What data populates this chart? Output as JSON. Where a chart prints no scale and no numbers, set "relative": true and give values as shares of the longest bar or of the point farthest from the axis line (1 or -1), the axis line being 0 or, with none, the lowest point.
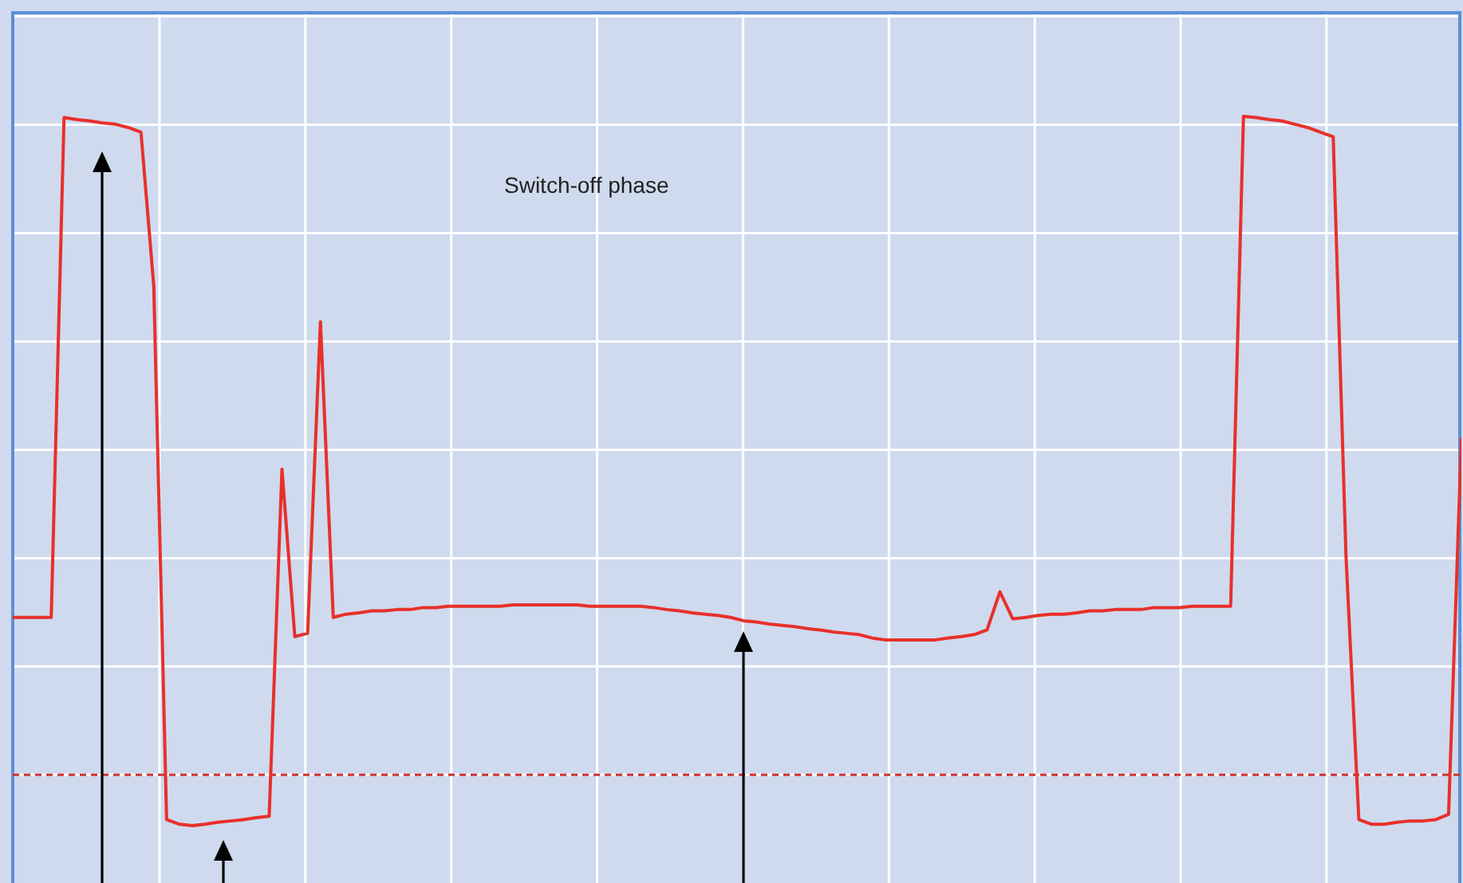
{
  "chart_data": {
    "type": "line",
    "relative": true,
    "grid": true,
    "legend": false,
    "marker": "none",
    "line_style": "solid",
    "annotations": [
      "Switch-off phase"
    ],
    "ref_lines": [
      {
        "axis": "y",
        "value": 0,
        "color": "#d03030",
        "line_style": "dashed"
      }
    ],
    "categories": [
      null,
      null,
      null,
      null,
      null,
      null,
      null,
      null,
      null,
      null,
      null,
      null,
      null,
      null,
      null,
      null,
      null,
      null,
      null,
      null,
      null,
      null,
      null,
      null,
      null,
      null,
      null,
      null,
      null,
      null,
      null,
      null,
      null,
      null,
      null,
      null,
      null,
      null,
      null,
      null,
      null,
      null,
      null,
      null,
      null,
      null,
      null,
      null,
      null,
      null,
      null,
      null,
      null,
      null,
      null,
      null,
      null,
      null,
      null,
      null,
      null,
      null,
      null,
      null,
      null,
      null,
      null,
      null,
      null,
      null,
      null,
      null,
      null,
      null,
      null,
      null,
      null,
      null,
      null,
      null,
      null,
      null,
      null,
      null,
      null,
      null,
      null,
      null,
      null,
      null,
      null,
      null,
      null,
      null,
      null,
      null,
      null,
      null,
      null,
      null,
      null,
      null,
      null,
      null,
      null,
      null,
      null,
      null,
      null,
      null,
      null,
      null,
      null,
      null
    ],
    "series": [
      {
        "color": "#e8302a",
        "values": [
          0.239,
          0.239,
          0.239,
          0.239,
          0.998,
          0.995,
          0.993,
          0.99,
          0.988,
          0.983,
          0.976,
          0.742,
          -0.068,
          -0.075,
          -0.077,
          -0.075,
          -0.072,
          -0.07,
          -0.068,
          -0.065,
          -0.063,
          0.464,
          0.21,
          0.215,
          0.688,
          0.239,
          0.244,
          0.246,
          0.249,
          0.249,
          0.251,
          0.251,
          0.254,
          0.254,
          0.256,
          0.256,
          0.256,
          0.256,
          0.256,
          0.258,
          0.258,
          0.258,
          0.258,
          0.258,
          0.258,
          0.256,
          0.256,
          0.256,
          0.256,
          0.256,
          0.254,
          0.251,
          0.249,
          0.246,
          0.244,
          0.242,
          0.239,
          0.234,
          0.232,
          0.229,
          0.227,
          0.225,
          0.222,
          0.22,
          0.217,
          0.215,
          0.213,
          0.208,
          0.205,
          0.205,
          0.205,
          0.205,
          0.205,
          0.208,
          0.21,
          0.213,
          0.22,
          0.278,
          0.237,
          0.239,
          0.242,
          0.244,
          0.244,
          0.246,
          0.249,
          0.249,
          0.251,
          0.251,
          0.251,
          0.254,
          0.254,
          0.254,
          0.256,
          0.256,
          0.256,
          0.256,
          1.0,
          0.998,
          0.995,
          0.993,
          0.988,
          0.983,
          0.976,
          0.969,
          0.331,
          -0.068,
          -0.075,
          -0.075,
          -0.072,
          -0.07,
          -0.07,
          -0.068,
          -0.06,
          0.512
        ]
      }
    ]
  }
}
